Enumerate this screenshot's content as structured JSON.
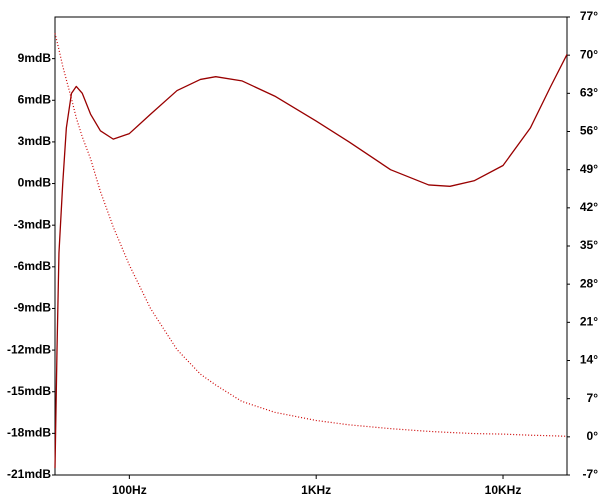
{
  "chart_data": {
    "type": "line",
    "xscale": "log",
    "x": [
      40,
      41,
      42,
      44,
      46,
      49,
      52,
      56,
      62,
      70,
      82,
      100,
      130,
      180,
      240,
      290,
      400,
      600,
      1000,
      1500,
      2500,
      4000,
      5200,
      7000,
      10000,
      14000,
      18000,
      22000
    ],
    "series": [
      {
        "color": "#990000",
        "style": "solid",
        "axis": "y",
        "values": [
          -20.5,
          -12,
          -5,
          0,
          4,
          6.5,
          7.0,
          6.5,
          5,
          3.8,
          3.2,
          3.6,
          5.0,
          6.7,
          7.5,
          7.7,
          7.4,
          6.3,
          4.5,
          3.0,
          1.0,
          -0.1,
          -0.2,
          0.2,
          1.3,
          4.0,
          7.0,
          9.3
        ]
      },
      {
        "color": "#cc0000",
        "style": "dotted",
        "axis": "y2",
        "values": [
          74,
          72.5,
          71,
          68,
          65.5,
          62,
          58.5,
          55,
          51,
          45,
          38.5,
          31.5,
          23.5,
          16,
          11.5,
          9.5,
          6.5,
          4.5,
          3,
          2.2,
          1.5,
          1,
          0.8,
          0.6,
          0.5,
          0.3,
          0.2,
          0.1
        ]
      }
    ],
    "xlim": [
      40,
      22000
    ],
    "xticks": [
      {
        "value": 100,
        "label": "100Hz"
      },
      {
        "value": 1000,
        "label": "1KHz"
      },
      {
        "value": 10000,
        "label": "10KHz"
      }
    ],
    "ylim": [
      -21,
      12
    ],
    "yticks": [
      {
        "value": -21,
        "label": "-21mdB"
      },
      {
        "value": -18,
        "label": "-18mdB"
      },
      {
        "value": -15,
        "label": "-15mdB"
      },
      {
        "value": -12,
        "label": "-12mdB"
      },
      {
        "value": -9,
        "label": "-9mdB"
      },
      {
        "value": -6,
        "label": "-6mdB"
      },
      {
        "value": -3,
        "label": "-3mdB"
      },
      {
        "value": 0,
        "label": "0mdB"
      },
      {
        "value": 3,
        "label": "3mdB"
      },
      {
        "value": 6,
        "label": "6mdB"
      },
      {
        "value": 9,
        "label": "9mdB"
      }
    ],
    "y2lim": [
      -7,
      77
    ],
    "y2ticks": [
      {
        "value": -7,
        "label": "-7°"
      },
      {
        "value": 0,
        "label": "0°"
      },
      {
        "value": 7,
        "label": "7°"
      },
      {
        "value": 14,
        "label": "14°"
      },
      {
        "value": 21,
        "label": "21°"
      },
      {
        "value": 28,
        "label": "28°"
      },
      {
        "value": 35,
        "label": "35°"
      },
      {
        "value": 42,
        "label": "42°"
      },
      {
        "value": 49,
        "label": "49°"
      },
      {
        "value": 56,
        "label": "56°"
      },
      {
        "value": 63,
        "label": "63°"
      },
      {
        "value": 70,
        "label": "70°"
      },
      {
        "value": 77,
        "label": "77°"
      }
    ],
    "grid": false
  }
}
